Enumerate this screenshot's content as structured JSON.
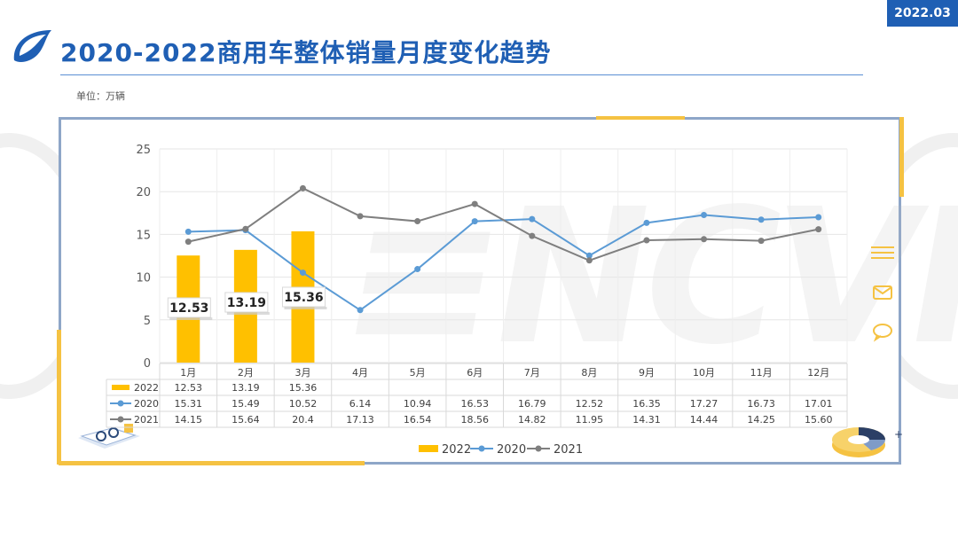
{
  "header": {
    "date_badge": "2022.03",
    "title": "2020-2022商用车整体销量月度变化趋势",
    "unit_label": "单位：万辆"
  },
  "colors": {
    "brand": "#1f5fb4",
    "accent": "#f5c242",
    "series_2022": "#ffc000",
    "series_2020": "#5b9bd5",
    "series_2021": "#7f7f7f"
  },
  "icons": {
    "menu": "menu-lines-icon",
    "mail": "mail-icon",
    "chat": "chat-bubble-icon"
  },
  "chart_data": {
    "type": "bar",
    "title": "",
    "xlabel": "",
    "ylabel": "",
    "ylim": [
      0,
      25
    ],
    "yticks": [
      0,
      5,
      10,
      15,
      20,
      25
    ],
    "grid": true,
    "legend_position": "bottom",
    "categories": [
      "1月",
      "2月",
      "3月",
      "4月",
      "5月",
      "6月",
      "7月",
      "8月",
      "9月",
      "10月",
      "11月",
      "12月"
    ],
    "series": [
      {
        "name": "2022",
        "type": "bar",
        "values": [
          12.53,
          13.19,
          15.36,
          null,
          null,
          null,
          null,
          null,
          null,
          null,
          null,
          null
        ],
        "table_values": [
          "12.53",
          "13.19",
          "15.36",
          "",
          "",
          "",
          "",
          "",
          "",
          "",
          "",
          ""
        ]
      },
      {
        "name": "2020",
        "type": "line",
        "values": [
          15.31,
          15.49,
          10.52,
          6.14,
          10.94,
          16.53,
          16.79,
          12.52,
          16.35,
          17.27,
          16.73,
          17.01
        ],
        "table_values": [
          "15.31",
          "15.49",
          "10.52",
          "6.14",
          "10.94",
          "16.53",
          "16.79",
          "12.52",
          "16.35",
          "17.27",
          "16.73",
          "17.01"
        ]
      },
      {
        "name": "2021",
        "type": "line",
        "values": [
          14.15,
          15.64,
          20.4,
          17.13,
          16.54,
          18.56,
          14.82,
          11.95,
          14.31,
          14.44,
          14.25,
          15.6
        ],
        "table_values": [
          "14.15",
          "15.64",
          "20.4",
          "17.13",
          "16.54",
          "18.56",
          "14.82",
          "11.95",
          "14.31",
          "14.44",
          "14.25",
          "15.60"
        ]
      }
    ],
    "data_labels": [
      "12.53",
      "13.19",
      "15.36"
    ]
  }
}
